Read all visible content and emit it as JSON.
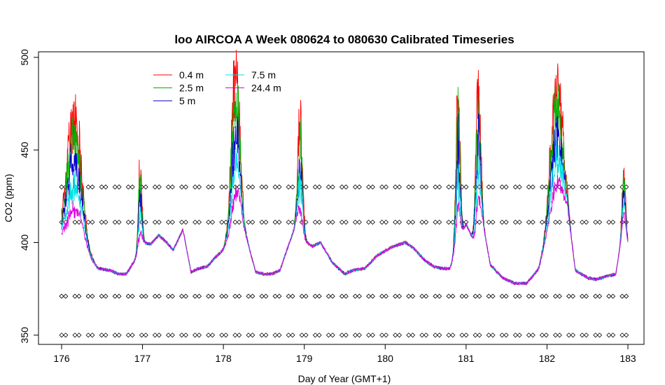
{
  "chart_data": {
    "type": "line",
    "title": "loo AIRCOA A  Week 080624 to 080630  Calibrated Timeseries",
    "xlabel": "Day of Year (GMT+1)",
    "ylabel": "CO2 (ppm)",
    "xlim": [
      176,
      183
    ],
    "ylim": [
      345,
      503
    ],
    "x_ticks": [
      "176",
      "177",
      "178",
      "179",
      "180",
      "181",
      "182",
      "183"
    ],
    "y_ticks": [
      "350",
      "400",
      "450",
      "500"
    ],
    "legend_position": "top-left",
    "series": [
      {
        "name": "0.4 m",
        "color": "#ff0000",
        "spike": 1.0
      },
      {
        "name": "2.5 m",
        "color": "#00b000",
        "spike": 0.85
      },
      {
        "name": "5 m",
        "color": "#0000cc",
        "spike": 0.62
      },
      {
        "name": "7.5 m",
        "color": "#00e0e0",
        "spike": 0.42
      },
      {
        "name": "24.4 m",
        "color": "#e000e0",
        "spike": 0.22
      }
    ],
    "base_profile": [
      [
        176.0,
        402
      ],
      [
        176.25,
        405
      ],
      [
        176.35,
        392
      ],
      [
        176.45,
        386
      ],
      [
        176.6,
        385
      ],
      [
        176.7,
        383
      ],
      [
        176.8,
        383
      ],
      [
        176.9,
        390
      ],
      [
        177.0,
        400
      ],
      [
        177.1,
        399
      ],
      [
        177.2,
        404
      ],
      [
        177.3,
        400
      ],
      [
        177.38,
        396
      ],
      [
        177.5,
        407
      ],
      [
        177.6,
        384
      ],
      [
        177.7,
        386
      ],
      [
        177.8,
        387
      ],
      [
        177.9,
        392
      ],
      [
        178.0,
        396
      ],
      [
        178.1,
        405
      ],
      [
        178.2,
        415
      ],
      [
        178.3,
        400
      ],
      [
        178.4,
        384
      ],
      [
        178.5,
        383
      ],
      [
        178.6,
        383
      ],
      [
        178.7,
        385
      ],
      [
        178.8,
        398
      ],
      [
        178.9,
        410
      ],
      [
        179.0,
        401
      ],
      [
        179.1,
        398
      ],
      [
        179.2,
        400
      ],
      [
        179.35,
        389
      ],
      [
        179.5,
        383
      ],
      [
        179.6,
        385
      ],
      [
        179.75,
        386
      ],
      [
        179.9,
        393
      ],
      [
        180.1,
        398
      ],
      [
        180.25,
        400
      ],
      [
        180.35,
        397
      ],
      [
        180.5,
        390
      ],
      [
        180.6,
        387
      ],
      [
        180.7,
        386
      ],
      [
        180.8,
        386
      ],
      [
        180.9,
        400
      ],
      [
        181.0,
        410
      ],
      [
        181.1,
        400
      ],
      [
        181.2,
        412
      ],
      [
        181.3,
        388
      ],
      [
        181.45,
        381
      ],
      [
        181.6,
        378
      ],
      [
        181.75,
        378
      ],
      [
        181.9,
        386
      ],
      [
        182.0,
        403
      ],
      [
        182.15,
        420
      ],
      [
        182.25,
        418
      ],
      [
        182.35,
        385
      ],
      [
        182.5,
        381
      ],
      [
        182.6,
        380
      ],
      [
        182.75,
        382
      ],
      [
        182.85,
        383
      ],
      [
        182.95,
        410
      ],
      [
        183.0,
        400
      ]
    ],
    "spikes": [
      {
        "center": 176.15,
        "width": 0.12,
        "height": 62
      },
      {
        "center": 176.97,
        "width": 0.03,
        "height": 40
      },
      {
        "center": 178.15,
        "width": 0.07,
        "height": 78
      },
      {
        "center": 178.95,
        "width": 0.04,
        "height": 58
      },
      {
        "center": 180.9,
        "width": 0.035,
        "height": 82
      },
      {
        "center": 181.15,
        "width": 0.04,
        "height": 78
      },
      {
        "center": 182.12,
        "width": 0.1,
        "height": 68
      },
      {
        "center": 182.95,
        "width": 0.03,
        "height": 28
      }
    ],
    "calibration_markers": {
      "symbol": "diamond",
      "levels": [
        350,
        371,
        411,
        430
      ],
      "spacing_days": 0.165
    }
  }
}
